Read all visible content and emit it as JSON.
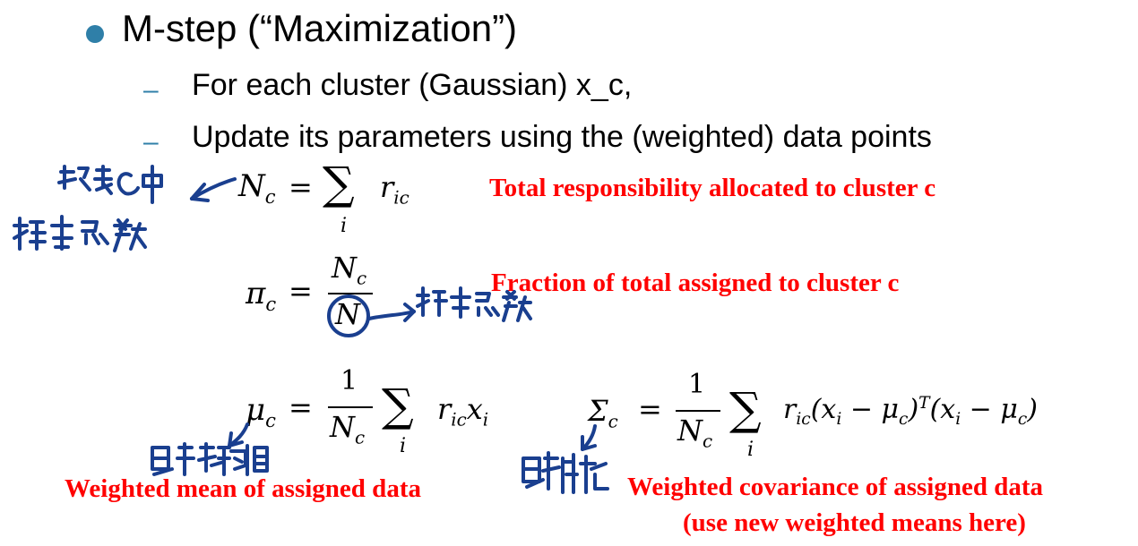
{
  "slide": {
    "heading": "M-step (“Maximization”)",
    "bullets": [
      "For each cluster (Gaussian) x_c,",
      "Update its parameters using the (weighted) data points"
    ],
    "dash": "–"
  },
  "annotations": {
    "nc_label": "Total responsibility allocated to cluster c",
    "pi_label": "Fraction of total assigned to cluster c",
    "mu_label": "Weighted mean of  assigned data",
    "sigma_label_line1": "Weighted covariance of  assigned data",
    "sigma_label_line2": "(use new weighted means here)"
  },
  "handwritten": {
    "nc_note": "聚类C中样本总数",
    "n_note": "样本总数",
    "mu_note": "更新均值",
    "sigma_note": "更新协方差"
  },
  "colors": {
    "bullet": "#2f7fa8",
    "annotation": "#ff0000",
    "ink": "#1a3f8f"
  }
}
